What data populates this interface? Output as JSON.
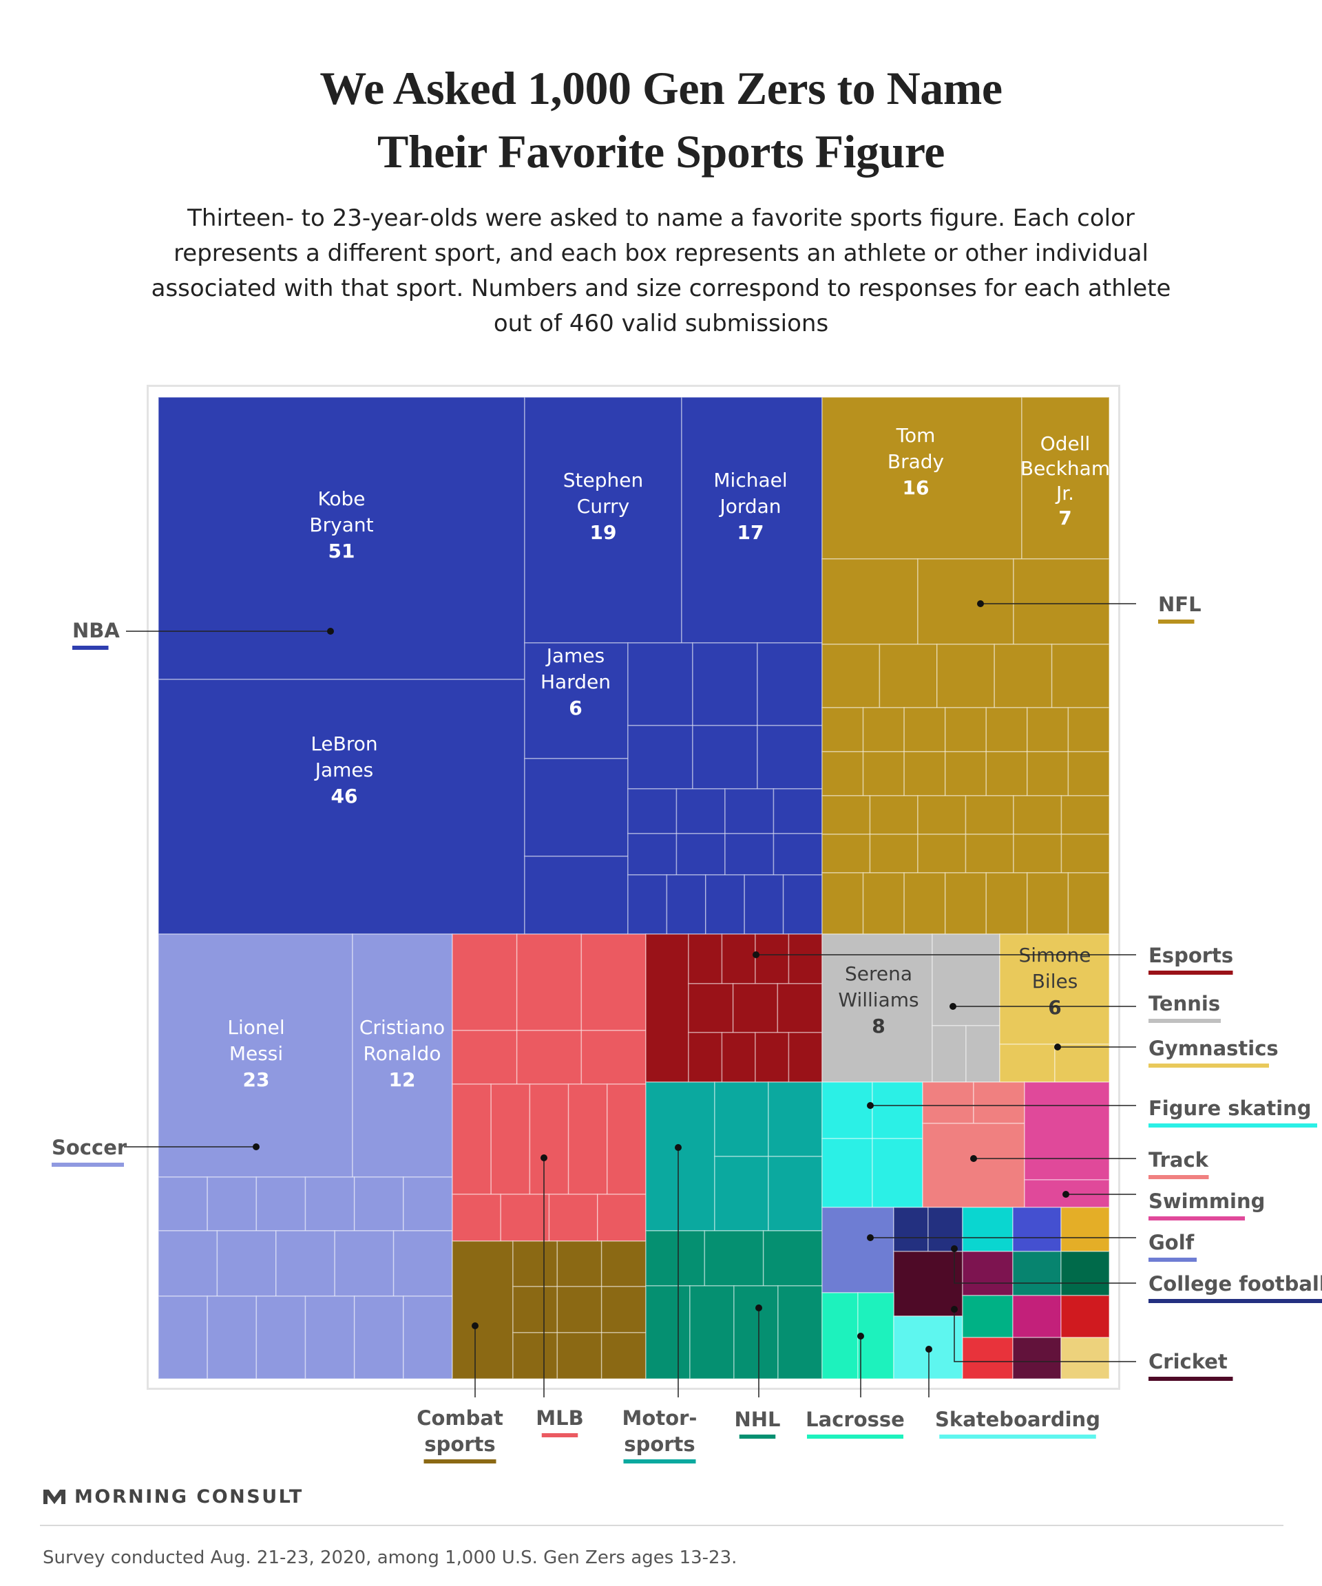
{
  "title_lines": [
    "We Asked 1,000 Gen Zers to Name",
    "Their Favorite Sports Figure"
  ],
  "subtitle": "Thirteen- to 23-year-olds were asked to name a favorite sports figure. Each color represents a different sport, and each box represents an athlete or other individual associated with that sport. Numbers and size correspond to responses for each athlete out of 460 valid submissions",
  "logo_text": "MORNING CONSULT",
  "source": "Survey conducted Aug. 21-23, 2020, among 1,000 U.S. Gen Zers ages 13-23.",
  "chart_data": {
    "type": "treemap",
    "total_valid_submissions": 460,
    "sports": [
      {
        "name": "NBA",
        "color": "#2e3eb0"
      },
      {
        "name": "NFL",
        "color": "#b8911e"
      },
      {
        "name": "Soccer",
        "color": "#8f99e0"
      },
      {
        "name": "MLB",
        "color": "#eb5a61"
      },
      {
        "name": "Esports",
        "color": "#9a1218"
      },
      {
        "name": "Tennis",
        "color": "#c0c0c0"
      },
      {
        "name": "Gymnastics",
        "color": "#e9c95b"
      },
      {
        "name": "Combat sports",
        "color": "#8b6914"
      },
      {
        "name": "Motorsports",
        "color": "#0ba99f"
      },
      {
        "name": "NHL",
        "color": "#059071"
      },
      {
        "name": "Figure skating",
        "color": "#2bf0e6"
      },
      {
        "name": "Track",
        "color": "#f08080"
      },
      {
        "name": "Swimming",
        "color": "#e0499a"
      },
      {
        "name": "Golf",
        "color": "#6e7dd3"
      },
      {
        "name": "College football",
        "color": "#233080"
      },
      {
        "name": "Lacrosse",
        "color": "#1df2bd"
      },
      {
        "name": "Skateboarding",
        "color": "#5ef6ef"
      },
      {
        "name": "Cricket",
        "color": "#4e0a27"
      }
    ],
    "named_athletes": [
      {
        "name": "Kobe Bryant",
        "sport": "NBA",
        "value": 51
      },
      {
        "name": "LeBron James",
        "sport": "NBA",
        "value": 46
      },
      {
        "name": "Stephen Curry",
        "sport": "NBA",
        "value": 19
      },
      {
        "name": "Michael Jordan",
        "sport": "NBA",
        "value": 17
      },
      {
        "name": "James Harden",
        "sport": "NBA",
        "value": 6
      },
      {
        "name": "Tom Brady",
        "sport": "NFL",
        "value": 16
      },
      {
        "name": "Odell Beckham Jr.",
        "sport": "NFL",
        "value": 7
      },
      {
        "name": "Lionel Messi",
        "sport": "Soccer",
        "value": 23
      },
      {
        "name": "Cristiano Ronaldo",
        "sport": "Soccer",
        "value": 12
      },
      {
        "name": "Serena Williams",
        "sport": "Tennis",
        "value": 8
      },
      {
        "name": "Simone Biles",
        "sport": "Gymnastics",
        "value": 6
      }
    ],
    "legend_labels": {
      "NBA": "NBA",
      "NFL": "NFL",
      "Soccer": "Soccer",
      "Esports": "Esports",
      "Tennis": "Tennis",
      "Gymnastics": "Gymnastics",
      "Figure skating": "Figure skating",
      "Track": "Track",
      "Swimming": "Swimming",
      "Golf": "Golf",
      "College football": "College football",
      "Cricket": "Cricket",
      "Combat sports": [
        "Combat",
        "sports"
      ],
      "MLB": "MLB",
      "Motorsports": [
        "Motor-",
        "sports"
      ],
      "NHL": "NHL",
      "Lacrosse": "Lacrosse",
      "Skateboarding": "Skateboarding"
    },
    "extra_colors": {
      "maroon": "#7d1450",
      "teal_dark": "#07846f",
      "green_dark": "#006a4a",
      "green": "#00b185",
      "pink": "#c3207a",
      "red": "#d01a1f",
      "red_light": "#e8333b",
      "wine": "#62123b",
      "sand": "#edd27c",
      "gold": "#e4ae27",
      "blue": "#4450d0",
      "cyan": "#0ad6d0"
    }
  }
}
